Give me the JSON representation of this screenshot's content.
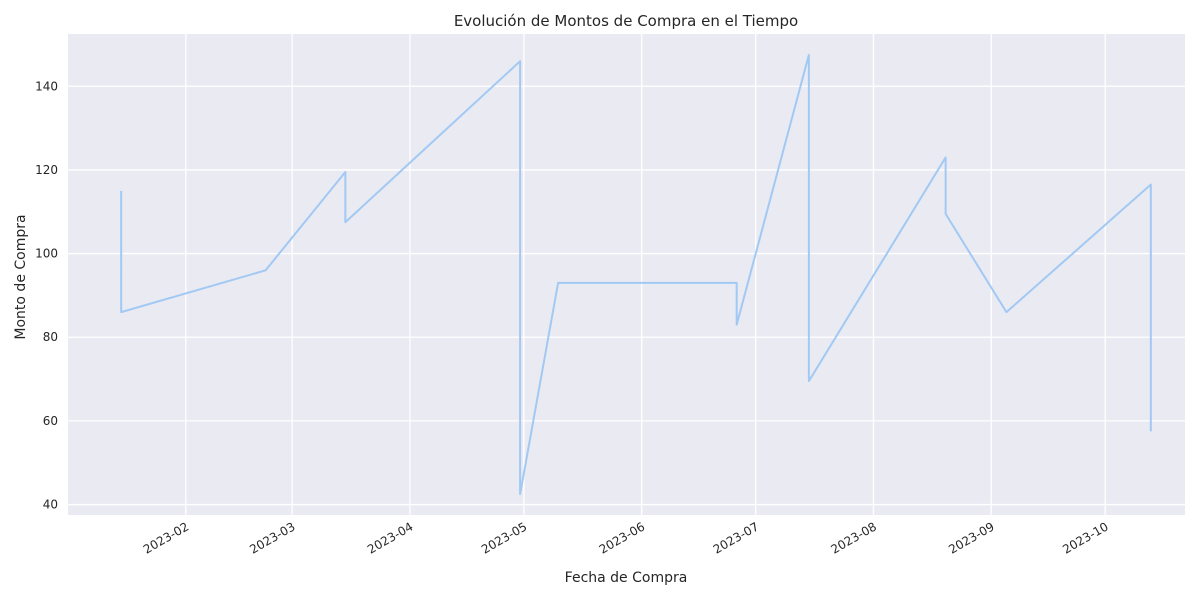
{
  "chart_data": {
    "type": "line",
    "title": "Evolución de Montos de Compra en el Tiempo",
    "xlabel": "Fecha de Compra",
    "ylabel": "Monto de Compra",
    "x_ticks": [
      "2023-02-01",
      "2023-03-01",
      "2023-04-01",
      "2023-05-01",
      "2023-06-01",
      "2023-07-01",
      "2023-08-01",
      "2023-09-01",
      "2023-10-01"
    ],
    "x_tick_labels": [
      "2023-02",
      "2023-03",
      "2023-04",
      "2023-05",
      "2023-06",
      "2023-07",
      "2023-08",
      "2023-09",
      "2023-10"
    ],
    "y_ticks": [
      40,
      60,
      80,
      100,
      120,
      140
    ],
    "xlim": [
      "2023-01-01",
      "2023-10-22"
    ],
    "ylim": [
      37.5,
      152.5
    ],
    "grid": true,
    "series": [
      {
        "color": "#a1c9f4",
        "x": [
          "2023-01-15",
          "2023-01-15",
          "2023-02-22",
          "2023-03-15",
          "2023-03-15",
          "2023-04-30",
          "2023-04-30",
          "2023-05-10",
          "2023-06-26",
          "2023-06-26",
          "2023-07-15",
          "2023-07-15",
          "2023-08-20",
          "2023-08-20",
          "2023-09-05",
          "2023-10-13",
          "2023-10-13"
        ],
        "y": [
          115,
          86,
          96,
          119.5,
          107.5,
          146,
          42.5,
          93,
          93,
          83,
          147.5,
          69.5,
          123,
          109.5,
          86,
          116.5,
          57.5
        ]
      }
    ]
  }
}
